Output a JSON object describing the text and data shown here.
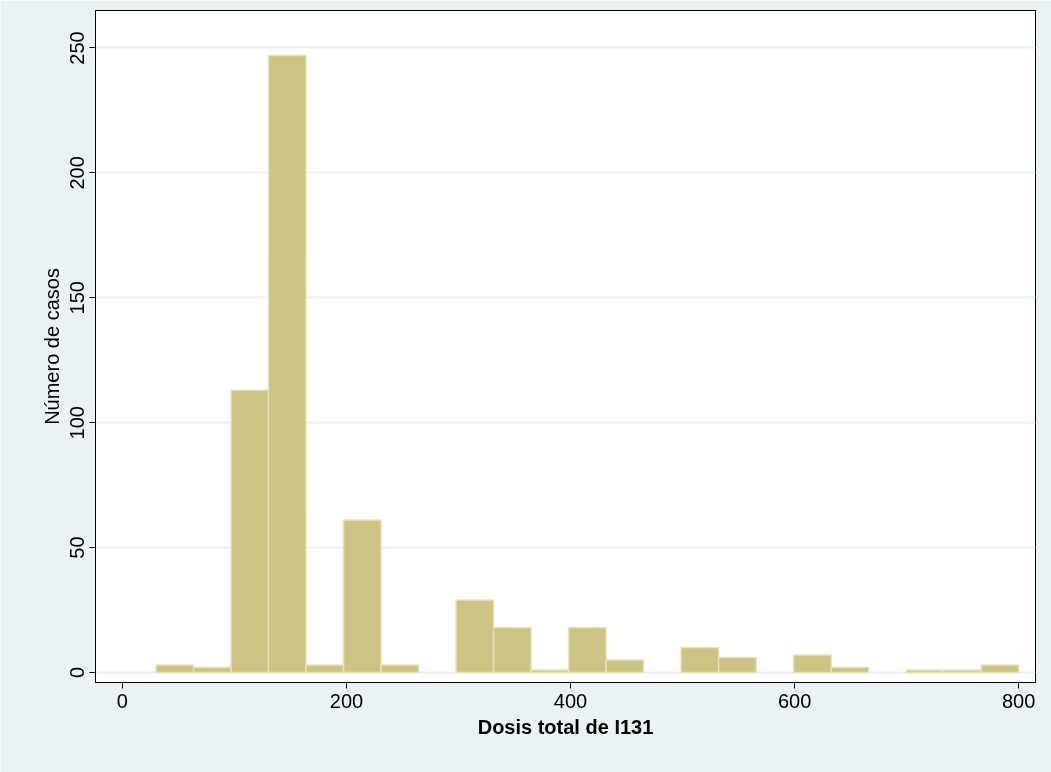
{
  "chart_data": {
    "type": "histogram",
    "xlabel": "Dosis total de I131",
    "ylabel": "Número de casos",
    "bins": [
      30,
      63.5,
      97.0,
      130.4,
      163.9,
      197.4,
      230.9,
      264.3,
      297.8,
      331.3,
      364.8,
      398.3,
      431.7,
      465.2,
      498.7,
      532.2,
      565.7,
      599.1,
      632.6,
      666.1,
      699.6,
      733.0,
      766.5,
      800
    ],
    "values": [
      3,
      2,
      113,
      247,
      3,
      61,
      3,
      0,
      29,
      18,
      1,
      18,
      5,
      0,
      10,
      6,
      0,
      7,
      2,
      0,
      1,
      1,
      3
    ],
    "color": "#cdc384",
    "xlim": [
      -24,
      815
    ],
    "ylim": [
      -4,
      265
    ],
    "xticks": [
      0,
      200,
      400,
      600,
      800
    ],
    "yticks": [
      0,
      50,
      100,
      150,
      200,
      250
    ],
    "grid": "y"
  }
}
